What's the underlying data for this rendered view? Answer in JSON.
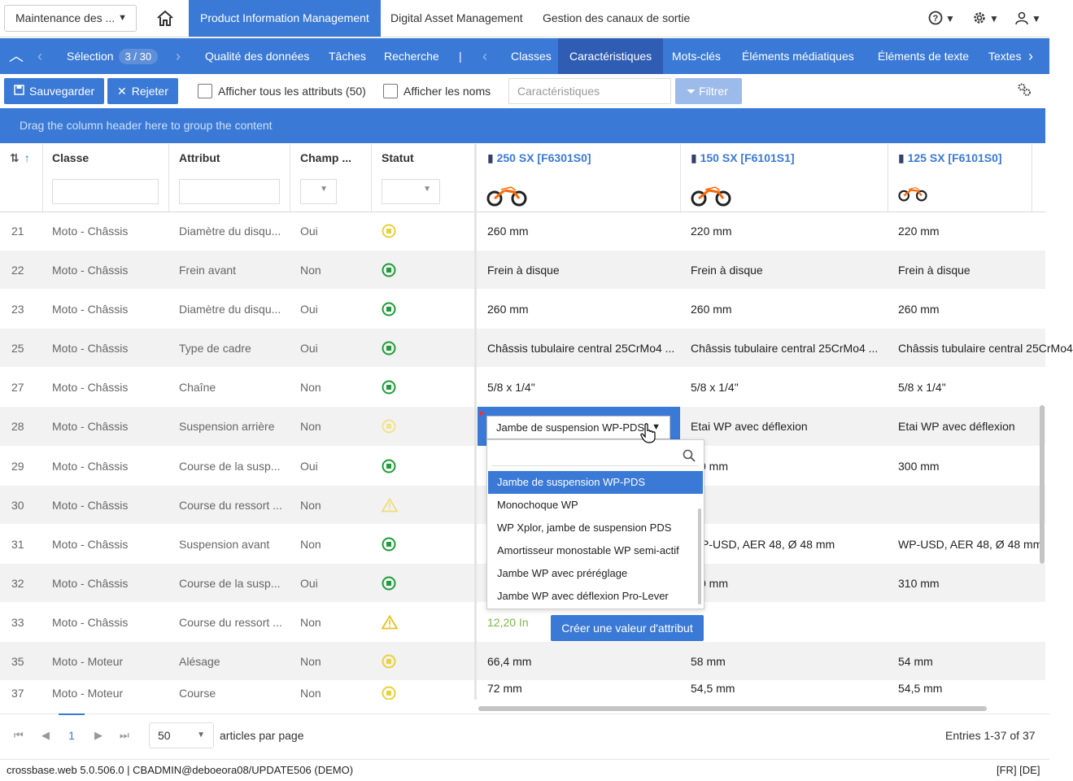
{
  "topbar": {
    "maintenance_label": "Maintenance des ...",
    "tabs": [
      "Product Information Management",
      "Digital Asset Management",
      "Gestion des canaux de sortie"
    ]
  },
  "navbar": {
    "selection_label": "Sélection",
    "selection_count": "3 / 30",
    "left_items": [
      "Qualité des données",
      "Tâches",
      "Recherche"
    ],
    "separator": "|",
    "right_items": [
      "Classes",
      "Caractéristiques",
      "Mots-clés",
      "Éléments médiatiques",
      "Éléments de texte",
      "Textes"
    ]
  },
  "toolbar": {
    "save_label": "Sauvegarder",
    "reject_label": "Rejeter",
    "show_all_label": "Afficher tous les attributs (50)",
    "show_names_label": "Afficher les noms",
    "filter_placeholder": "Caractéristiques",
    "filter_button": "Filtrer"
  },
  "groupbar": "Drag the column header here to group the content",
  "columns": {
    "classe": "Classe",
    "attribut": "Attribut",
    "champ": "Champ ...",
    "statut": "Statut",
    "products": [
      "250 SX [F6301S0]",
      "150 SX [F6101S1]",
      "125 SX [F6101S0]"
    ]
  },
  "rows": [
    {
      "id": "21",
      "classe": "Moto - Châssis",
      "attr": "Diamètre du disqu...",
      "champ": "Oui",
      "status": "pending",
      "v": [
        "260 mm",
        "220 mm",
        "220 mm"
      ]
    },
    {
      "id": "22",
      "classe": "Moto - Châssis",
      "attr": "Frein avant",
      "champ": "Non",
      "status": "ok",
      "v": [
        "Frein à disque",
        "Frein à disque",
        "Frein à disque"
      ]
    },
    {
      "id": "23",
      "classe": "Moto - Châssis",
      "attr": "Diamètre du disqu...",
      "champ": "Oui",
      "status": "ok",
      "v": [
        "260 mm",
        "260 mm",
        "260 mm"
      ]
    },
    {
      "id": "25",
      "classe": "Moto - Châssis",
      "attr": "Type de cadre",
      "champ": "Oui",
      "status": "ok",
      "v": [
        "Châssis tubulaire central 25CrMo4 ...",
        "Châssis tubulaire central 25CrMo4 ...",
        "Châssis tubulaire central 25CrMo4"
      ]
    },
    {
      "id": "27",
      "classe": "Moto - Châssis",
      "attr": "Chaîne",
      "champ": "Non",
      "status": "ok",
      "v": [
        "5/8 x 1/4\"",
        "5/8 x 1/4\"",
        "5/8 x 1/4\""
      ]
    },
    {
      "id": "28",
      "classe": "Moto - Châssis",
      "attr": "Suspension arrière",
      "champ": "Non",
      "status": "pending-light",
      "v": [
        "",
        "Etai WP avec déflexion",
        "Etai WP avec déflexion"
      ]
    },
    {
      "id": "29",
      "classe": "Moto - Châssis",
      "attr": "Course de la susp...",
      "champ": "Oui",
      "status": "ok",
      "v": [
        "",
        "0 mm",
        "300 mm"
      ]
    },
    {
      "id": "30",
      "classe": "Moto - Châssis",
      "attr": "Course du ressort ...",
      "champ": "Non",
      "status": "warn-light",
      "v": [
        "",
        "",
        ""
      ]
    },
    {
      "id": "31",
      "classe": "Moto - Châssis",
      "attr": "Suspension avant",
      "champ": "Non",
      "status": "ok",
      "v": [
        "",
        "P-USD, AER 48, Ø 48 mm",
        "WP-USD, AER 48, Ø 48 mm"
      ]
    },
    {
      "id": "32",
      "classe": "Moto - Châssis",
      "attr": "Course de la susp...",
      "champ": "Oui",
      "status": "ok",
      "v": [
        "",
        "0 mm",
        "310 mm"
      ]
    },
    {
      "id": "33",
      "classe": "Moto - Châssis",
      "attr": "Course du ressort ...",
      "champ": "Non",
      "status": "warn",
      "v": [
        "12,20 In",
        "",
        ""
      ]
    },
    {
      "id": "35",
      "classe": "Moto - Moteur",
      "attr": "Alésage",
      "champ": "Non",
      "status": "pending",
      "v": [
        "66,4 mm",
        "58 mm",
        "54 mm"
      ]
    },
    {
      "id": "37",
      "classe": "Moto - Moteur",
      "attr": "Course",
      "champ": "Non",
      "status": "pending",
      "v": [
        "72 mm",
        "54,5 mm",
        "54,5 mm"
      ]
    }
  ],
  "dropdown": {
    "current": "Jambe de suspension WP-PDS",
    "options": [
      "Jambe de suspension WP-PDS",
      "Monochoque WP",
      "WP Xplor, jambe de suspension PDS",
      "Amortisseur monostable WP semi-actif",
      "Jambe WP avec préréglage",
      "Jambe WP avec déflexion Pro-Lever"
    ],
    "create_label": "Créer une valeur d'attribut"
  },
  "pager": {
    "current_page": "1",
    "page_size": "50",
    "page_size_label": "articles par page",
    "entries": "Entries 1-37 of 37"
  },
  "footer": {
    "left": "crossbase.web 5.0.506.0 | CBADMIN@deboeora08/UPDATE506 (DEMO)",
    "right": "[FR] [DE]"
  },
  "colors": {
    "accent": "#3a79d6",
    "accent_dark": "#2f5db3",
    "ok": "#1f9d3a",
    "pending": "#e8d23b",
    "warn": "#e8c21b"
  }
}
